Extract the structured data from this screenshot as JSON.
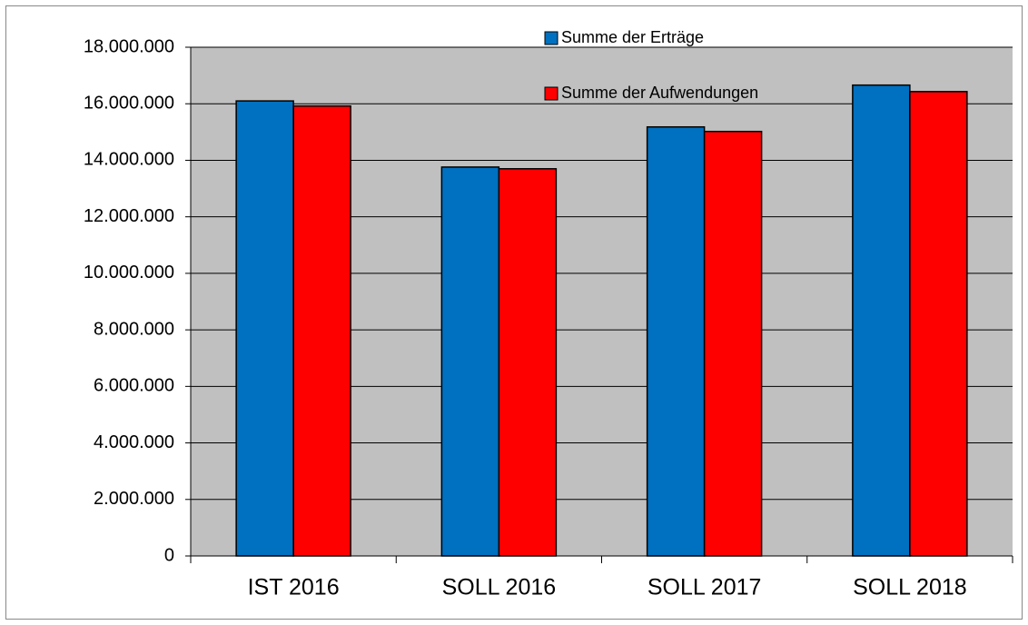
{
  "chart_data": {
    "type": "bar",
    "categories": [
      "IST 2016",
      "SOLL 2016",
      "SOLL 2017",
      "SOLL 2018"
    ],
    "series": [
      {
        "name": "Summe der Erträge",
        "color": "#0070c0",
        "values": [
          16100000,
          13760000,
          15180000,
          16660000
        ]
      },
      {
        "name": "Summe der Aufwendungen",
        "color": "#ff0000",
        "values": [
          15920000,
          13700000,
          15020000,
          16430000
        ]
      }
    ],
    "ylim": [
      0,
      18000000
    ],
    "yticks": [
      0,
      {
        "value": 2000000,
        "label": "2.000.000"
      },
      {
        "value": 4000000,
        "label": "4.000.000"
      },
      {
        "value": 6000000,
        "label": "6.000.000"
      },
      {
        "value": 8000000,
        "label": "8.000.000"
      },
      {
        "value": 10000000,
        "label": "10.000.000"
      },
      {
        "value": 12000000,
        "label": "12.000.000"
      },
      {
        "value": 14000000,
        "label": "14.000.000"
      },
      {
        "value": 16000000,
        "label": "16.000.000"
      },
      {
        "value": 18000000,
        "label": "18.000.000"
      }
    ],
    "grid": true,
    "legend": "top"
  }
}
